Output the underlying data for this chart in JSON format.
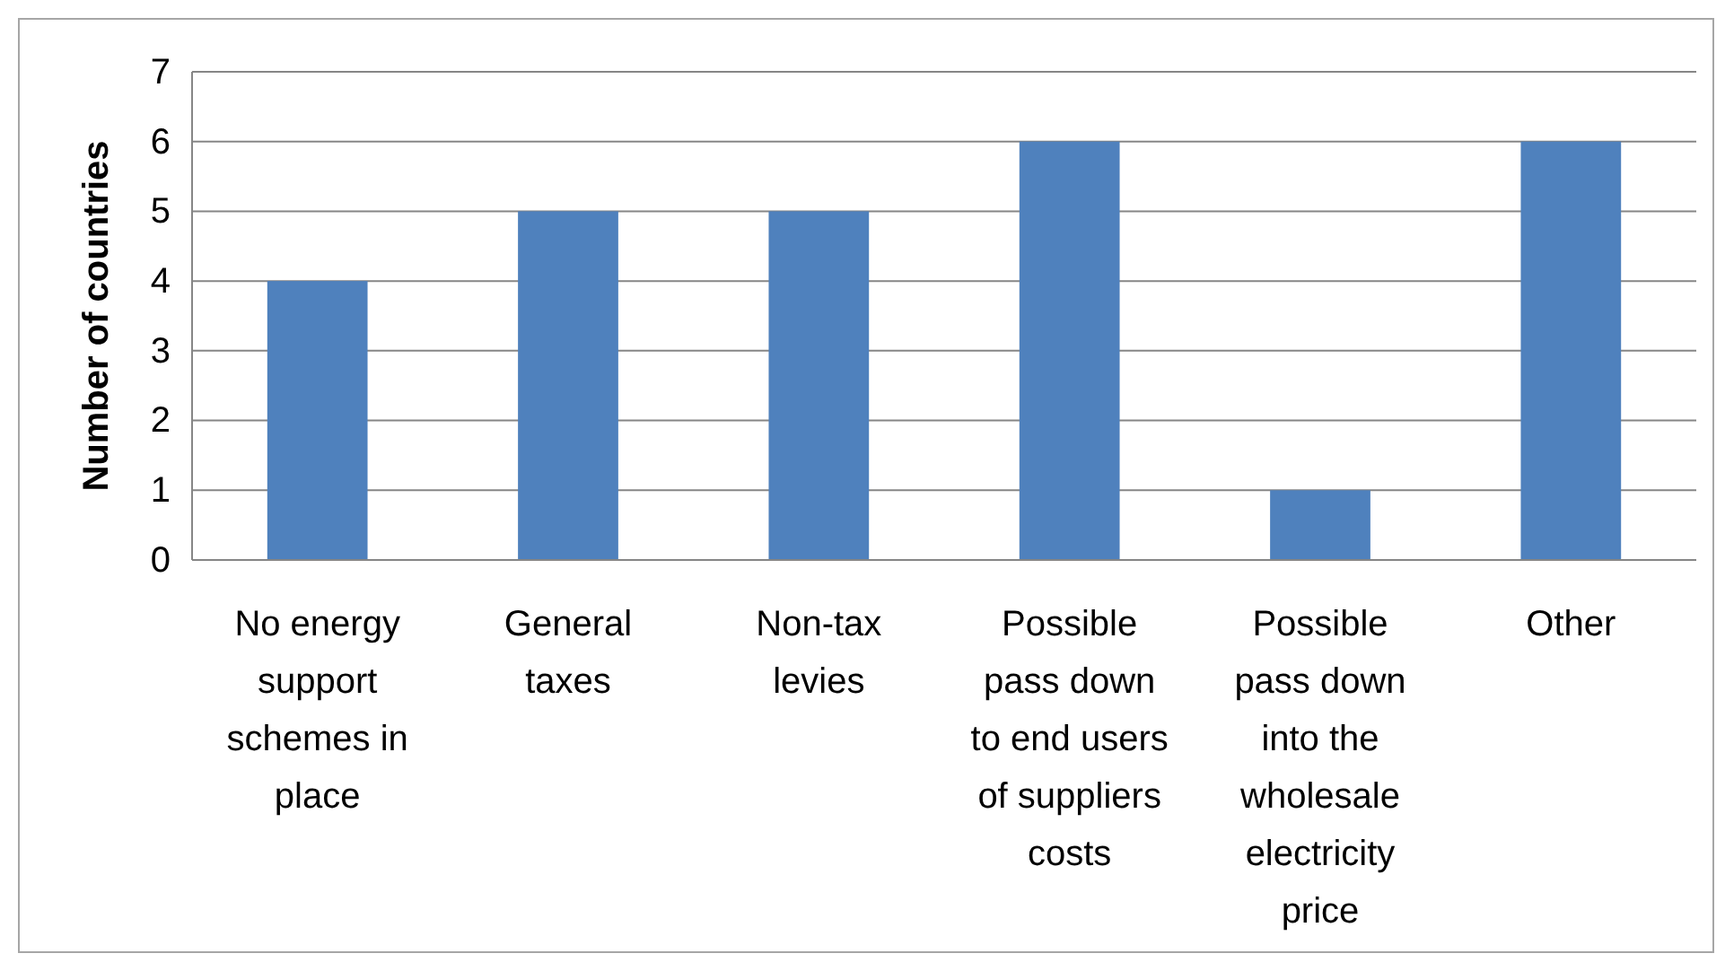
{
  "chart_data": {
    "type": "bar",
    "ylabel": "Number of countries",
    "categories": [
      "No energy support schemes in place",
      "General taxes",
      "Non-tax levies",
      "Possible pass down to end users of suppliers costs",
      "Possible pass down into the wholesale electricity price",
      "Other"
    ],
    "values": [
      4,
      5,
      5,
      6,
      1,
      6
    ],
    "color": "#4f81bd",
    "ylim": [
      0,
      7
    ],
    "yticks": [
      0,
      1,
      2,
      3,
      4,
      5,
      6,
      7
    ],
    "grid": "y"
  }
}
